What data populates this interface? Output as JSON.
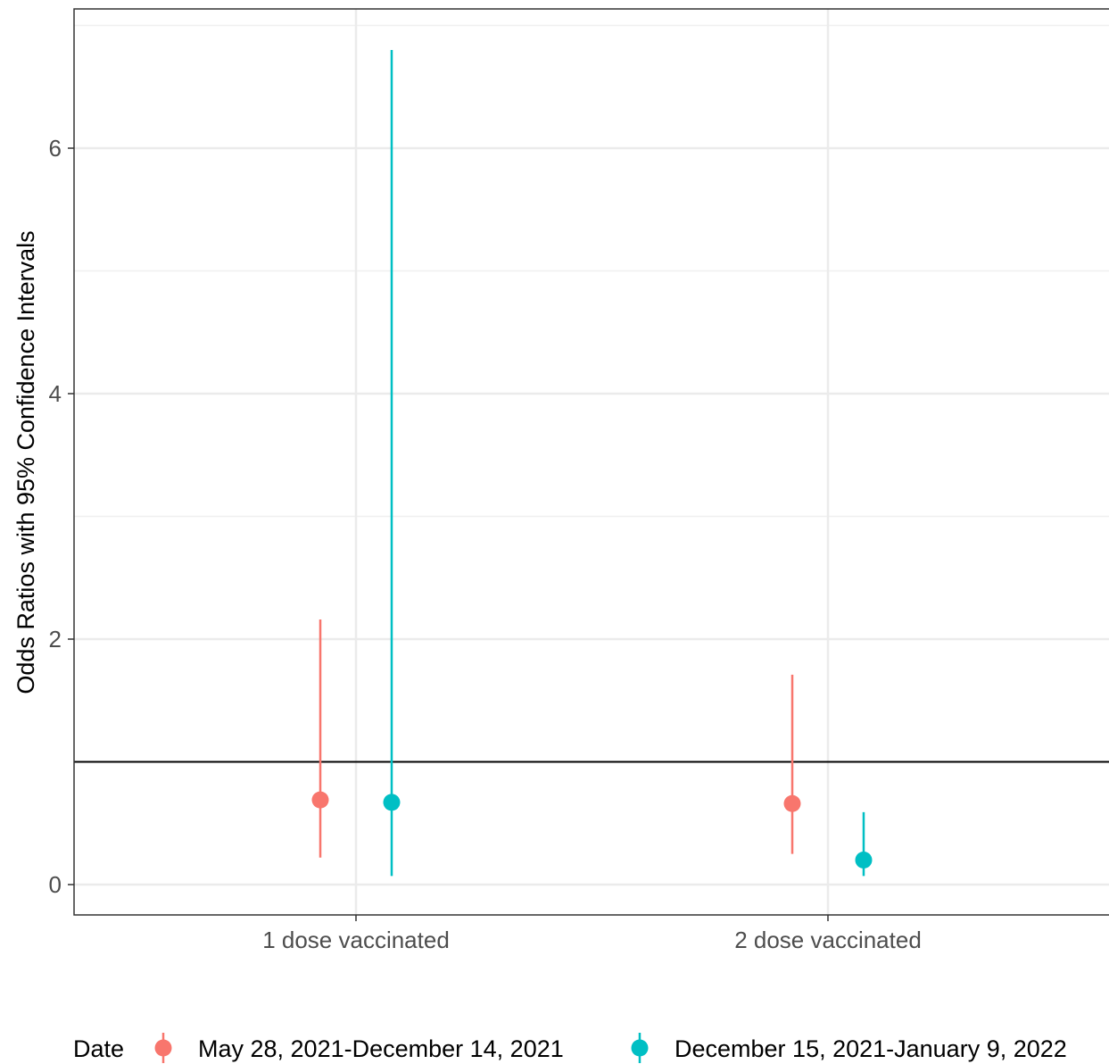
{
  "chart_data": {
    "type": "scatter",
    "subtype": "point-range",
    "title": "",
    "xlabel": "",
    "ylabel": "Odds Ratios with 95% Confidence Intervals",
    "categories": [
      "1 dose vaccinated",
      "2 dose vaccinated"
    ],
    "y_ticks": [
      "0",
      "2",
      "4",
      "6"
    ],
    "ylim": [
      -0.25,
      7.1
    ],
    "grid": true,
    "reference_line": {
      "y": 1.0,
      "color": "#000000"
    },
    "legend": {
      "title": "Date",
      "position": "bottom"
    },
    "series": [
      {
        "name": "May 28, 2021-December 14, 2021",
        "color": "#F8766D",
        "estimates": [
          0.69,
          0.66
        ],
        "lower": [
          0.22,
          0.25
        ],
        "upper": [
          2.16,
          1.71
        ]
      },
      {
        "name": "December 15, 2021-January 9, 2022",
        "color": "#00BFC4",
        "estimates": [
          0.67,
          0.2
        ],
        "lower": [
          0.07,
          0.07
        ],
        "upper": [
          6.8,
          0.59
        ]
      }
    ]
  }
}
